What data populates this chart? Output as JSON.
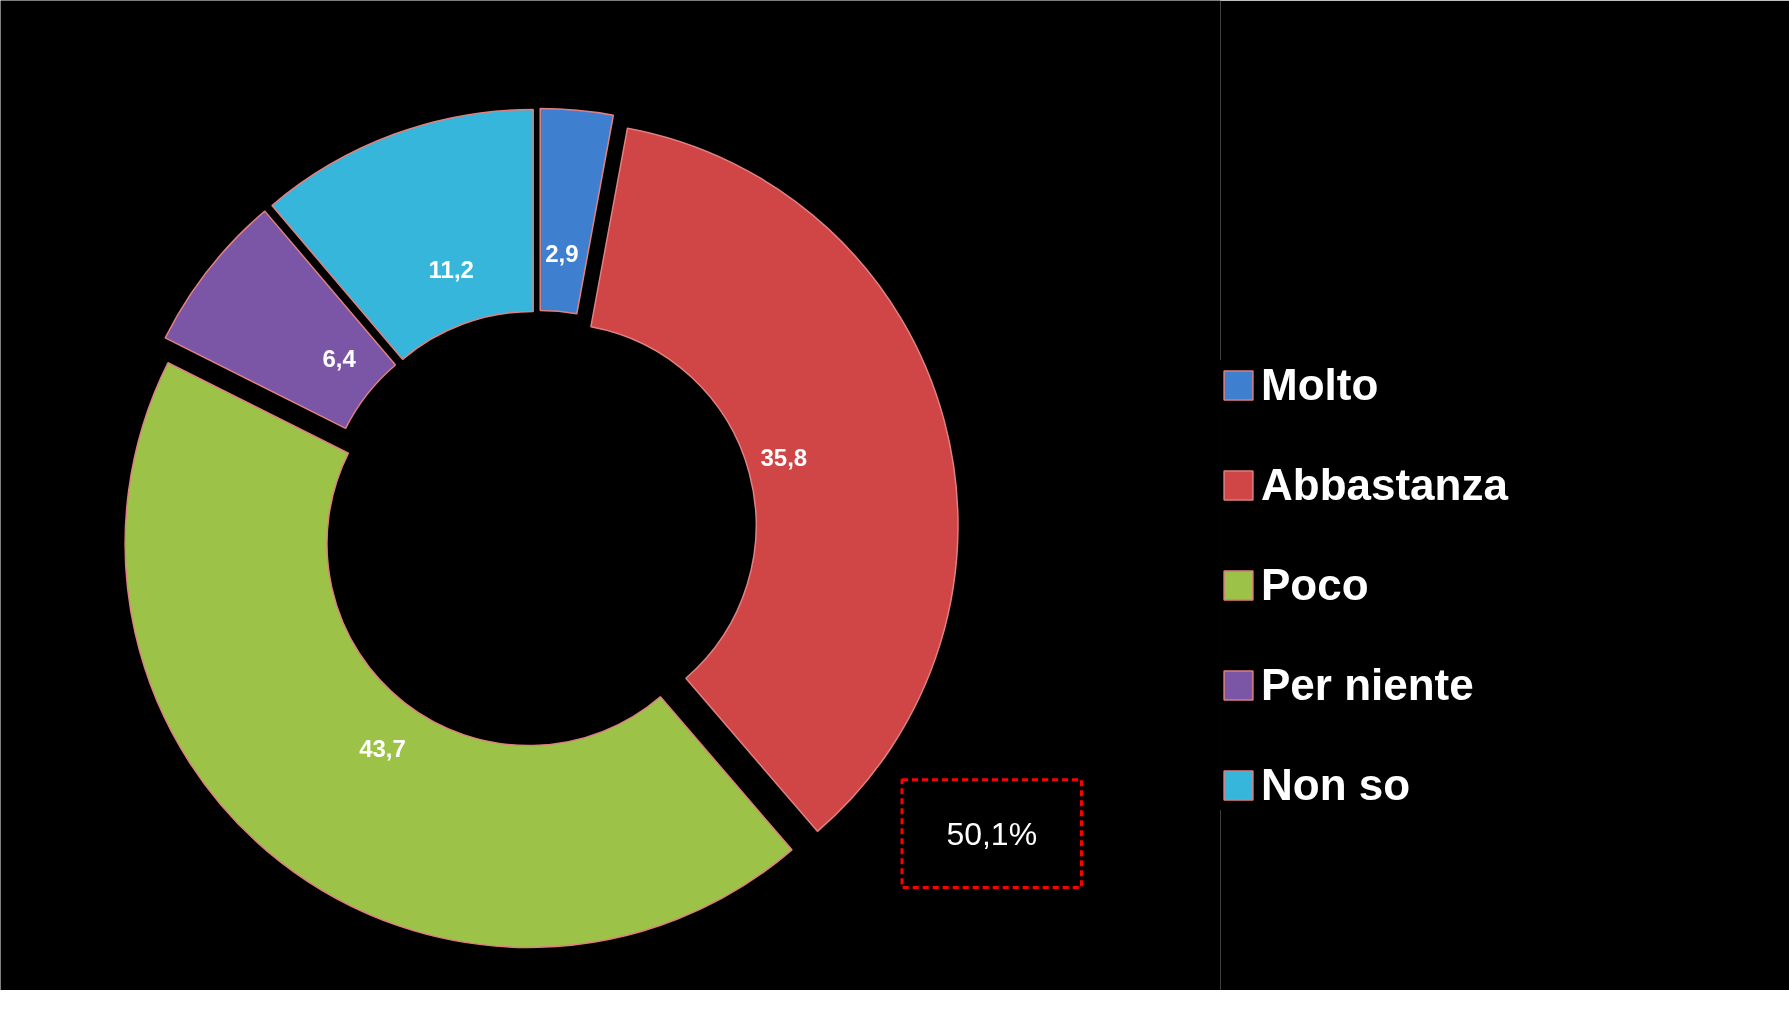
{
  "chart_data": {
    "type": "donut",
    "categories": [
      "Molto",
      "Abbastanza",
      "Poco",
      "Per niente",
      "Non so"
    ],
    "values": [
      2.9,
      35.8,
      43.7,
      6.4,
      11.2
    ],
    "value_labels": [
      "2,9",
      "35,8",
      "43,7",
      "6,4",
      "11,2"
    ],
    "colors": [
      "#3f7fd0",
      "#d04545",
      "#9cc247",
      "#7b56a6",
      "#35b6da"
    ],
    "annotations": [
      "50,1%"
    ],
    "legend": "right"
  }
}
